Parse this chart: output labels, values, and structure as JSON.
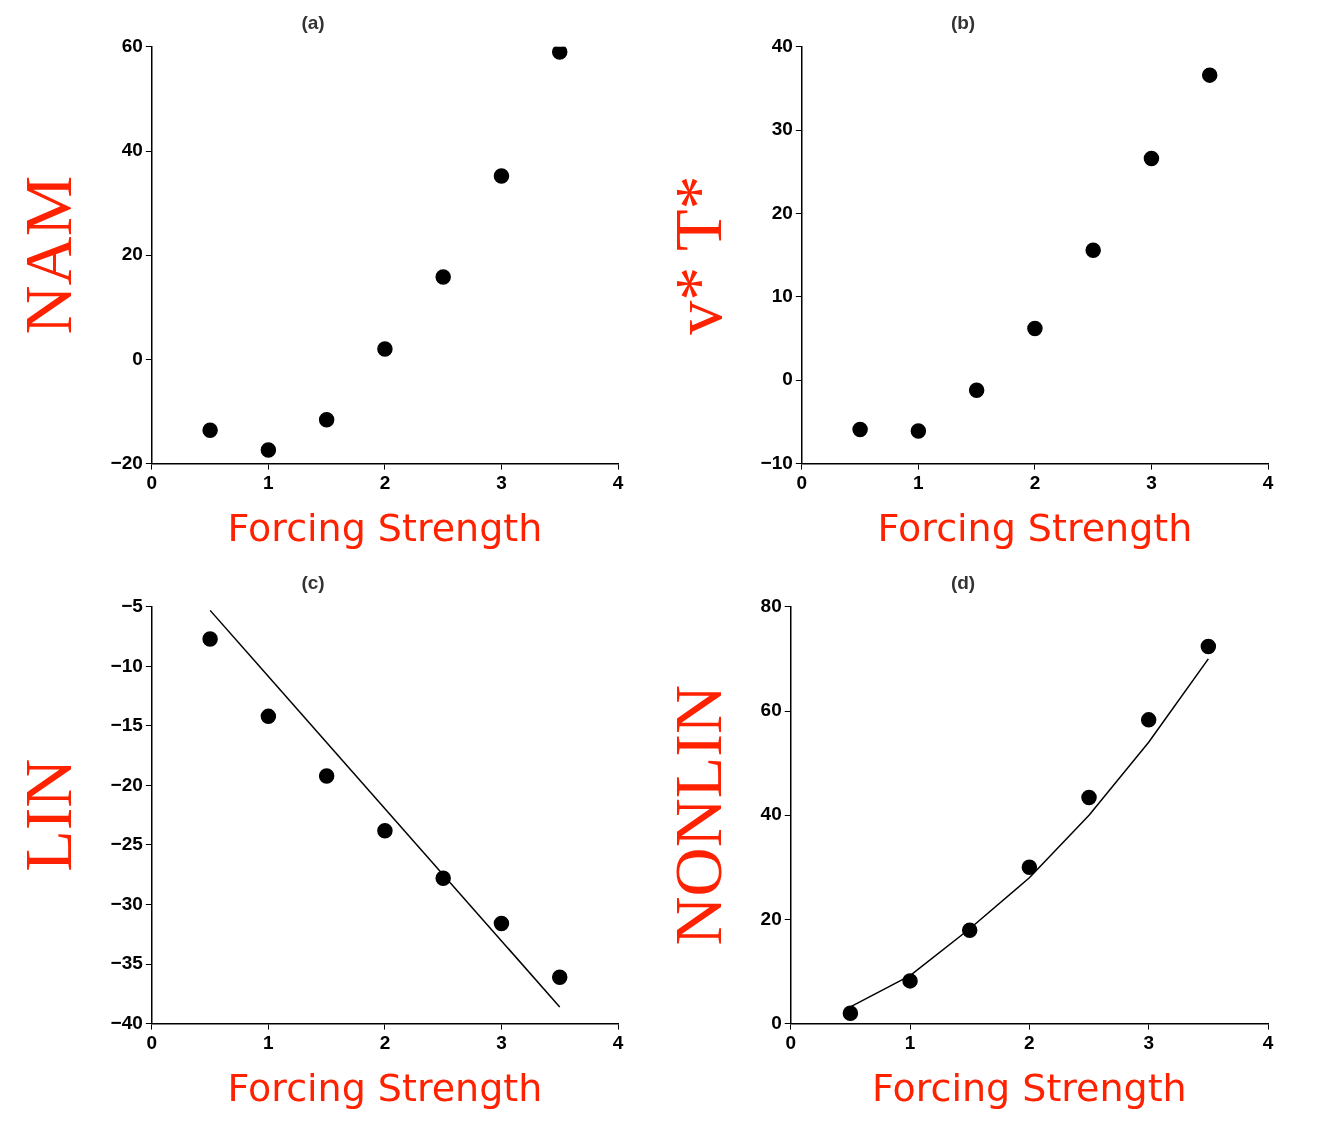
{
  "chart_data": [
    {
      "type": "scatter",
      "title": "(a)",
      "xlabel": "Forcing Strength",
      "ylabel": "NAM",
      "xlim": [
        0,
        4
      ],
      "xticks": [
        0,
        1,
        2,
        3,
        4
      ],
      "ylim": [
        -20,
        60
      ],
      "yticks": [
        -20,
        0,
        20,
        40,
        60
      ],
      "grid": false,
      "series": [
        {
          "type": "scatter",
          "color": "#000000",
          "marker": "circle",
          "x": [
            0.5,
            1,
            1.5,
            2,
            2.5,
            3,
            3.5
          ],
          "values": [
            -13.6,
            -17.4,
            -11.6,
            2,
            15.8,
            35.2,
            59
          ]
        }
      ]
    },
    {
      "type": "scatter",
      "title": "(b)",
      "xlabel": "Forcing Strength",
      "ylabel": "v* T*",
      "xlim": [
        0,
        4
      ],
      "xticks": [
        0,
        1,
        2,
        3,
        4
      ],
      "ylim": [
        -10,
        40
      ],
      "yticks": [
        -10,
        0,
        10,
        20,
        30,
        40
      ],
      "grid": false,
      "series": [
        {
          "type": "scatter",
          "color": "#000000",
          "marker": "circle",
          "x": [
            0.5,
            1,
            1.5,
            2,
            2.5,
            3,
            3.5
          ],
          "values": [
            -5.9,
            -6.1,
            -1.2,
            6.2,
            15.6,
            26.6,
            36.6
          ]
        }
      ]
    },
    {
      "type": "scatter",
      "title": "(c)",
      "xlabel": "Forcing Strength",
      "ylabel": "LIN",
      "xlim": [
        0,
        4
      ],
      "xticks": [
        0,
        1,
        2,
        3,
        4
      ],
      "ylim": [
        -40,
        -5
      ],
      "yticks": [
        -40,
        -35,
        -30,
        -25,
        -20,
        -15,
        -10,
        -5
      ],
      "grid": false,
      "series": [
        {
          "type": "scatter",
          "color": "#000000",
          "marker": "circle",
          "x": [
            0.5,
            1,
            1.5,
            2,
            2.5,
            3,
            3.5
          ],
          "values": [
            -7.7,
            -14.2,
            -19.2,
            -23.8,
            -27.8,
            -31.6,
            -36.1
          ]
        },
        {
          "type": "line",
          "color": "#000000",
          "marker": "none",
          "line_style": "solid",
          "x": [
            0.5,
            3.5
          ],
          "values": [
            -5.3,
            -38.6
          ]
        }
      ]
    },
    {
      "type": "scatter",
      "title": "(d)",
      "xlabel": "Forcing Strength",
      "ylabel": "NONLIN",
      "xlim": [
        0,
        4
      ],
      "xticks": [
        0,
        1,
        2,
        3,
        4
      ],
      "ylim": [
        0,
        80
      ],
      "yticks": [
        0,
        20,
        40,
        60,
        80
      ],
      "grid": false,
      "series": [
        {
          "type": "scatter",
          "color": "#000000",
          "marker": "circle",
          "x": [
            0.5,
            1,
            1.5,
            2,
            2.5,
            3,
            3.5
          ],
          "values": [
            2,
            8.2,
            17.9,
            30,
            43.4,
            58.3,
            72.4
          ]
        },
        {
          "type": "line",
          "color": "#000000",
          "marker": "none",
          "line_style": "solid",
          "x": [
            0.5,
            1,
            1.5,
            2,
            2.5,
            3,
            3.5
          ],
          "values": [
            3.2,
            9.2,
            18.2,
            28,
            40,
            54,
            70
          ]
        }
      ]
    }
  ]
}
